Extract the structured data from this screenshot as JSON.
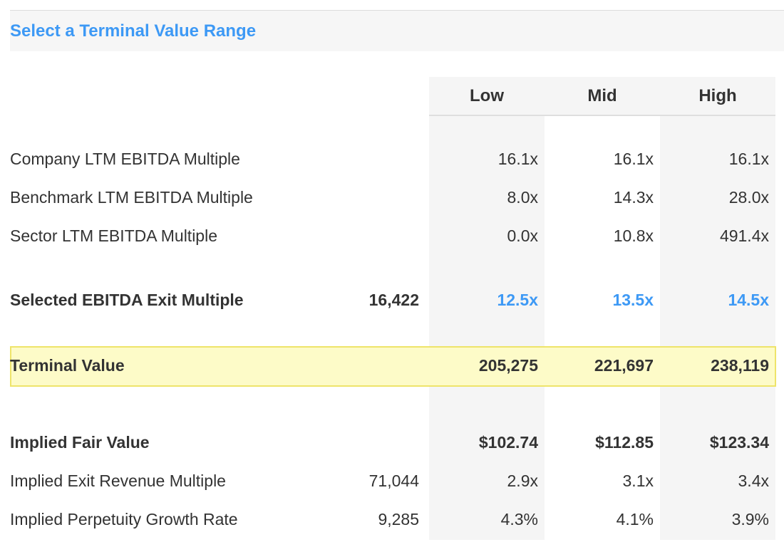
{
  "section": {
    "title": "Select a Terminal Value Range"
  },
  "columns": {
    "low": "Low",
    "mid": "Mid",
    "high": "High"
  },
  "rows": [
    {
      "label": "Company LTM EBITDA Multiple",
      "base": "",
      "low": "16.1x",
      "mid": "16.1x",
      "high": "16.1x"
    },
    {
      "label": "Benchmark LTM EBITDA Multiple",
      "base": "",
      "low": "8.0x",
      "mid": "14.3x",
      "high": "28.0x"
    },
    {
      "label": "Sector LTM EBITDA Multiple",
      "base": "",
      "low": "0.0x",
      "mid": "10.8x",
      "high": "491.4x"
    },
    {
      "label": "Selected EBITDA Exit Multiple",
      "base": "16,422",
      "low": "12.5x",
      "mid": "13.5x",
      "high": "14.5x"
    },
    {
      "label": "Terminal Value",
      "base": "",
      "low": "205,275",
      "mid": "221,697",
      "high": "238,119"
    },
    {
      "label": "Implied Fair Value",
      "base": "",
      "low": "$102.74",
      "mid": "$112.85",
      "high": "$123.34"
    },
    {
      "label": "Implied Exit Revenue Multiple",
      "base": "71,044",
      "low": "2.9x",
      "mid": "3.1x",
      "high": "3.4x"
    },
    {
      "label": "Implied Perpetuity Growth Rate",
      "base": "9,285",
      "low": "4.3%",
      "mid": "4.1%",
      "high": "3.9%"
    }
  ],
  "colors": {
    "accent": "#3d99f5",
    "highlight_fill": "#fdfbc8",
    "highlight_border": "#eee46a",
    "column_shade": "#f5f5f5"
  }
}
